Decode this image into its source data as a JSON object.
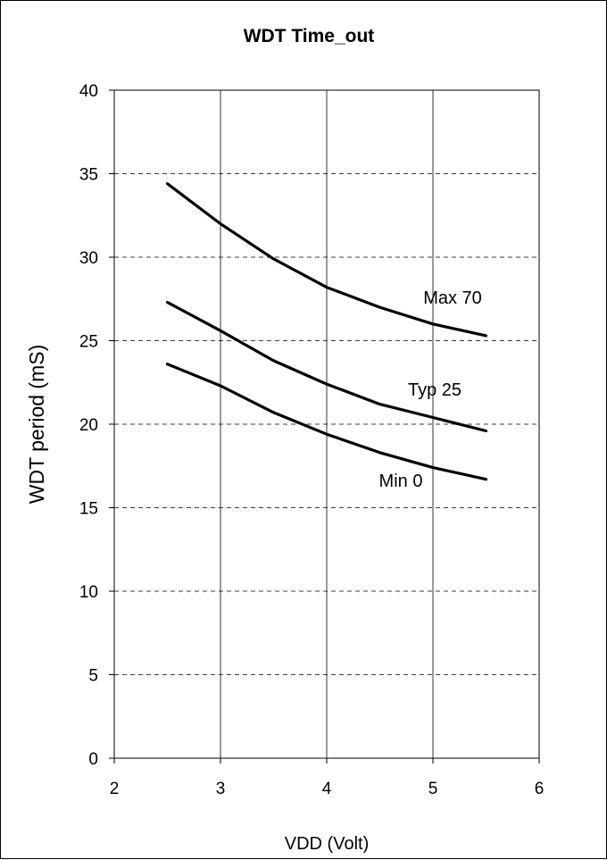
{
  "chart_data": {
    "type": "line",
    "title": "WDT Time_out",
    "xlabel": "VDD  (Volt)",
    "ylabel": "WDT period (mS)",
    "xlim": [
      2,
      6
    ],
    "ylim": [
      0,
      40
    ],
    "xticks": [
      2,
      3,
      4,
      5,
      6
    ],
    "yticks": [
      0,
      5,
      10,
      15,
      20,
      25,
      30,
      35,
      40
    ],
    "x_grid": "solid-vertical",
    "y_grid": "dashed-horizontal",
    "legend": "none",
    "line_color": "#000000",
    "series": [
      {
        "name": "Max 70",
        "x": [
          2.5,
          3.0,
          3.5,
          4.0,
          4.5,
          5.0,
          5.5
        ],
        "values": [
          34.4,
          32.0,
          29.9,
          28.2,
          27.0,
          26.0,
          25.3
        ]
      },
      {
        "name": "Typ 25",
        "x": [
          2.5,
          3.0,
          3.5,
          4.0,
          4.5,
          5.0,
          5.5
        ],
        "values": [
          27.3,
          25.6,
          23.8,
          22.4,
          21.2,
          20.4,
          19.6
        ]
      },
      {
        "name": "Min 0",
        "x": [
          2.5,
          3.0,
          3.5,
          4.0,
          4.5,
          5.0,
          5.5
        ],
        "values": [
          23.6,
          22.3,
          20.7,
          19.4,
          18.3,
          17.4,
          16.7
        ]
      }
    ]
  }
}
